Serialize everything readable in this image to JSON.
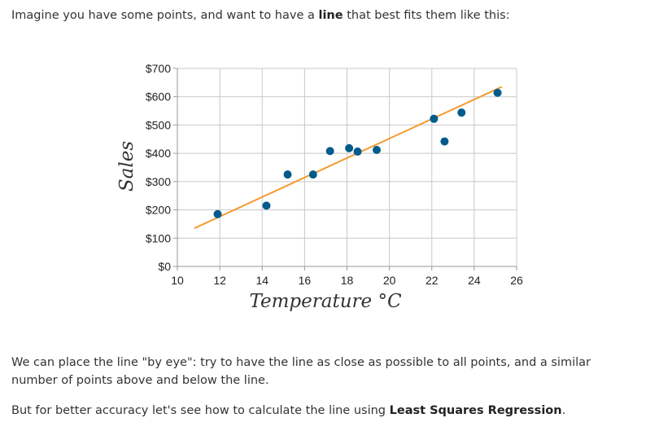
{
  "intro": {
    "before": "Imagine you have some points, and want to have a ",
    "bold": "line",
    "after": " that best fits them like this:"
  },
  "eye_paragraph": "We can place the line \"by eye\": try to have the line as close as possible to all points, and a similar number of points above and below the line.",
  "accuracy": {
    "before": "But for better accuracy let's see how to calculate the line using ",
    "bold": "Least Squares Regression",
    "after": "."
  },
  "chart_data": {
    "type": "scatter",
    "xlabel": "Temperature °C",
    "ylabel": "Sales",
    "xlim": [
      10,
      26
    ],
    "ylim": [
      0,
      700
    ],
    "x_ticks": [
      10,
      12,
      14,
      16,
      18,
      20,
      22,
      24,
      26
    ],
    "y_ticks": [
      0,
      100,
      200,
      300,
      400,
      500,
      600,
      700
    ],
    "y_tick_labels": [
      "$0",
      "$100",
      "$200",
      "$300",
      "$400",
      "$500",
      "$600",
      "$700"
    ],
    "grid": true,
    "points": [
      {
        "x": 11.9,
        "y": 185
      },
      {
        "x": 14.2,
        "y": 215
      },
      {
        "x": 15.2,
        "y": 325
      },
      {
        "x": 16.4,
        "y": 325
      },
      {
        "x": 17.2,
        "y": 408
      },
      {
        "x": 18.1,
        "y": 418
      },
      {
        "x": 18.5,
        "y": 406
      },
      {
        "x": 19.4,
        "y": 412
      },
      {
        "x": 22.1,
        "y": 522
      },
      {
        "x": 22.6,
        "y": 442
      },
      {
        "x": 23.4,
        "y": 544
      },
      {
        "x": 25.1,
        "y": 614
      }
    ],
    "fit_line": {
      "x1": 10.8,
      "y1": 135,
      "x2": 25.3,
      "y2": 635
    },
    "colors": {
      "points": "#005b8c",
      "line": "#f39b2f",
      "grid": "#c8c8c8",
      "axis": "#999999"
    }
  }
}
